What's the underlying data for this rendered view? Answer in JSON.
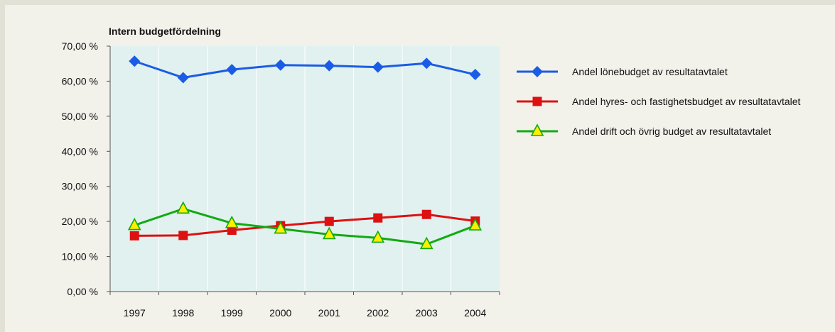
{
  "chart_data": {
    "type": "line",
    "title": "Intern budgetfördelning",
    "xlabel": "",
    "ylabel": "",
    "categories": [
      "1997",
      "1998",
      "1999",
      "2000",
      "2001",
      "2002",
      "2003",
      "2004"
    ],
    "ylim": [
      0,
      70
    ],
    "yticks": [
      0,
      10,
      20,
      30,
      40,
      50,
      60,
      70
    ],
    "ytick_labels": [
      "0,00 %",
      "10,00 %",
      "20,00 %",
      "30,00 %",
      "40,00 %",
      "50,00 %",
      "60,00 %",
      "70,00 %"
    ],
    "grid": "vertical",
    "legend_position": "right",
    "plot_background": "#e1f1ef",
    "series": [
      {
        "name": "Andel lönebudget av resultatavtalet",
        "color": "#1a5ce6",
        "marker": "diamond",
        "values": [
          65.7,
          61.0,
          63.3,
          64.6,
          64.4,
          64.0,
          65.1,
          61.9
        ]
      },
      {
        "name": "Andel hyres- och fastighetsbudget av resultatavtalet",
        "color": "#dd1111",
        "marker": "square",
        "values": [
          15.9,
          16.0,
          17.5,
          18.8,
          20.0,
          21.0,
          22.0,
          20.1
        ]
      },
      {
        "name": "Andel drift och övrig budget av resultatavtalet",
        "color": "#11aa11",
        "marker_fill": "#ffee00",
        "marker": "triangle",
        "values": [
          18.9,
          23.6,
          19.5,
          17.9,
          16.3,
          15.3,
          13.5,
          18.8
        ]
      }
    ]
  }
}
